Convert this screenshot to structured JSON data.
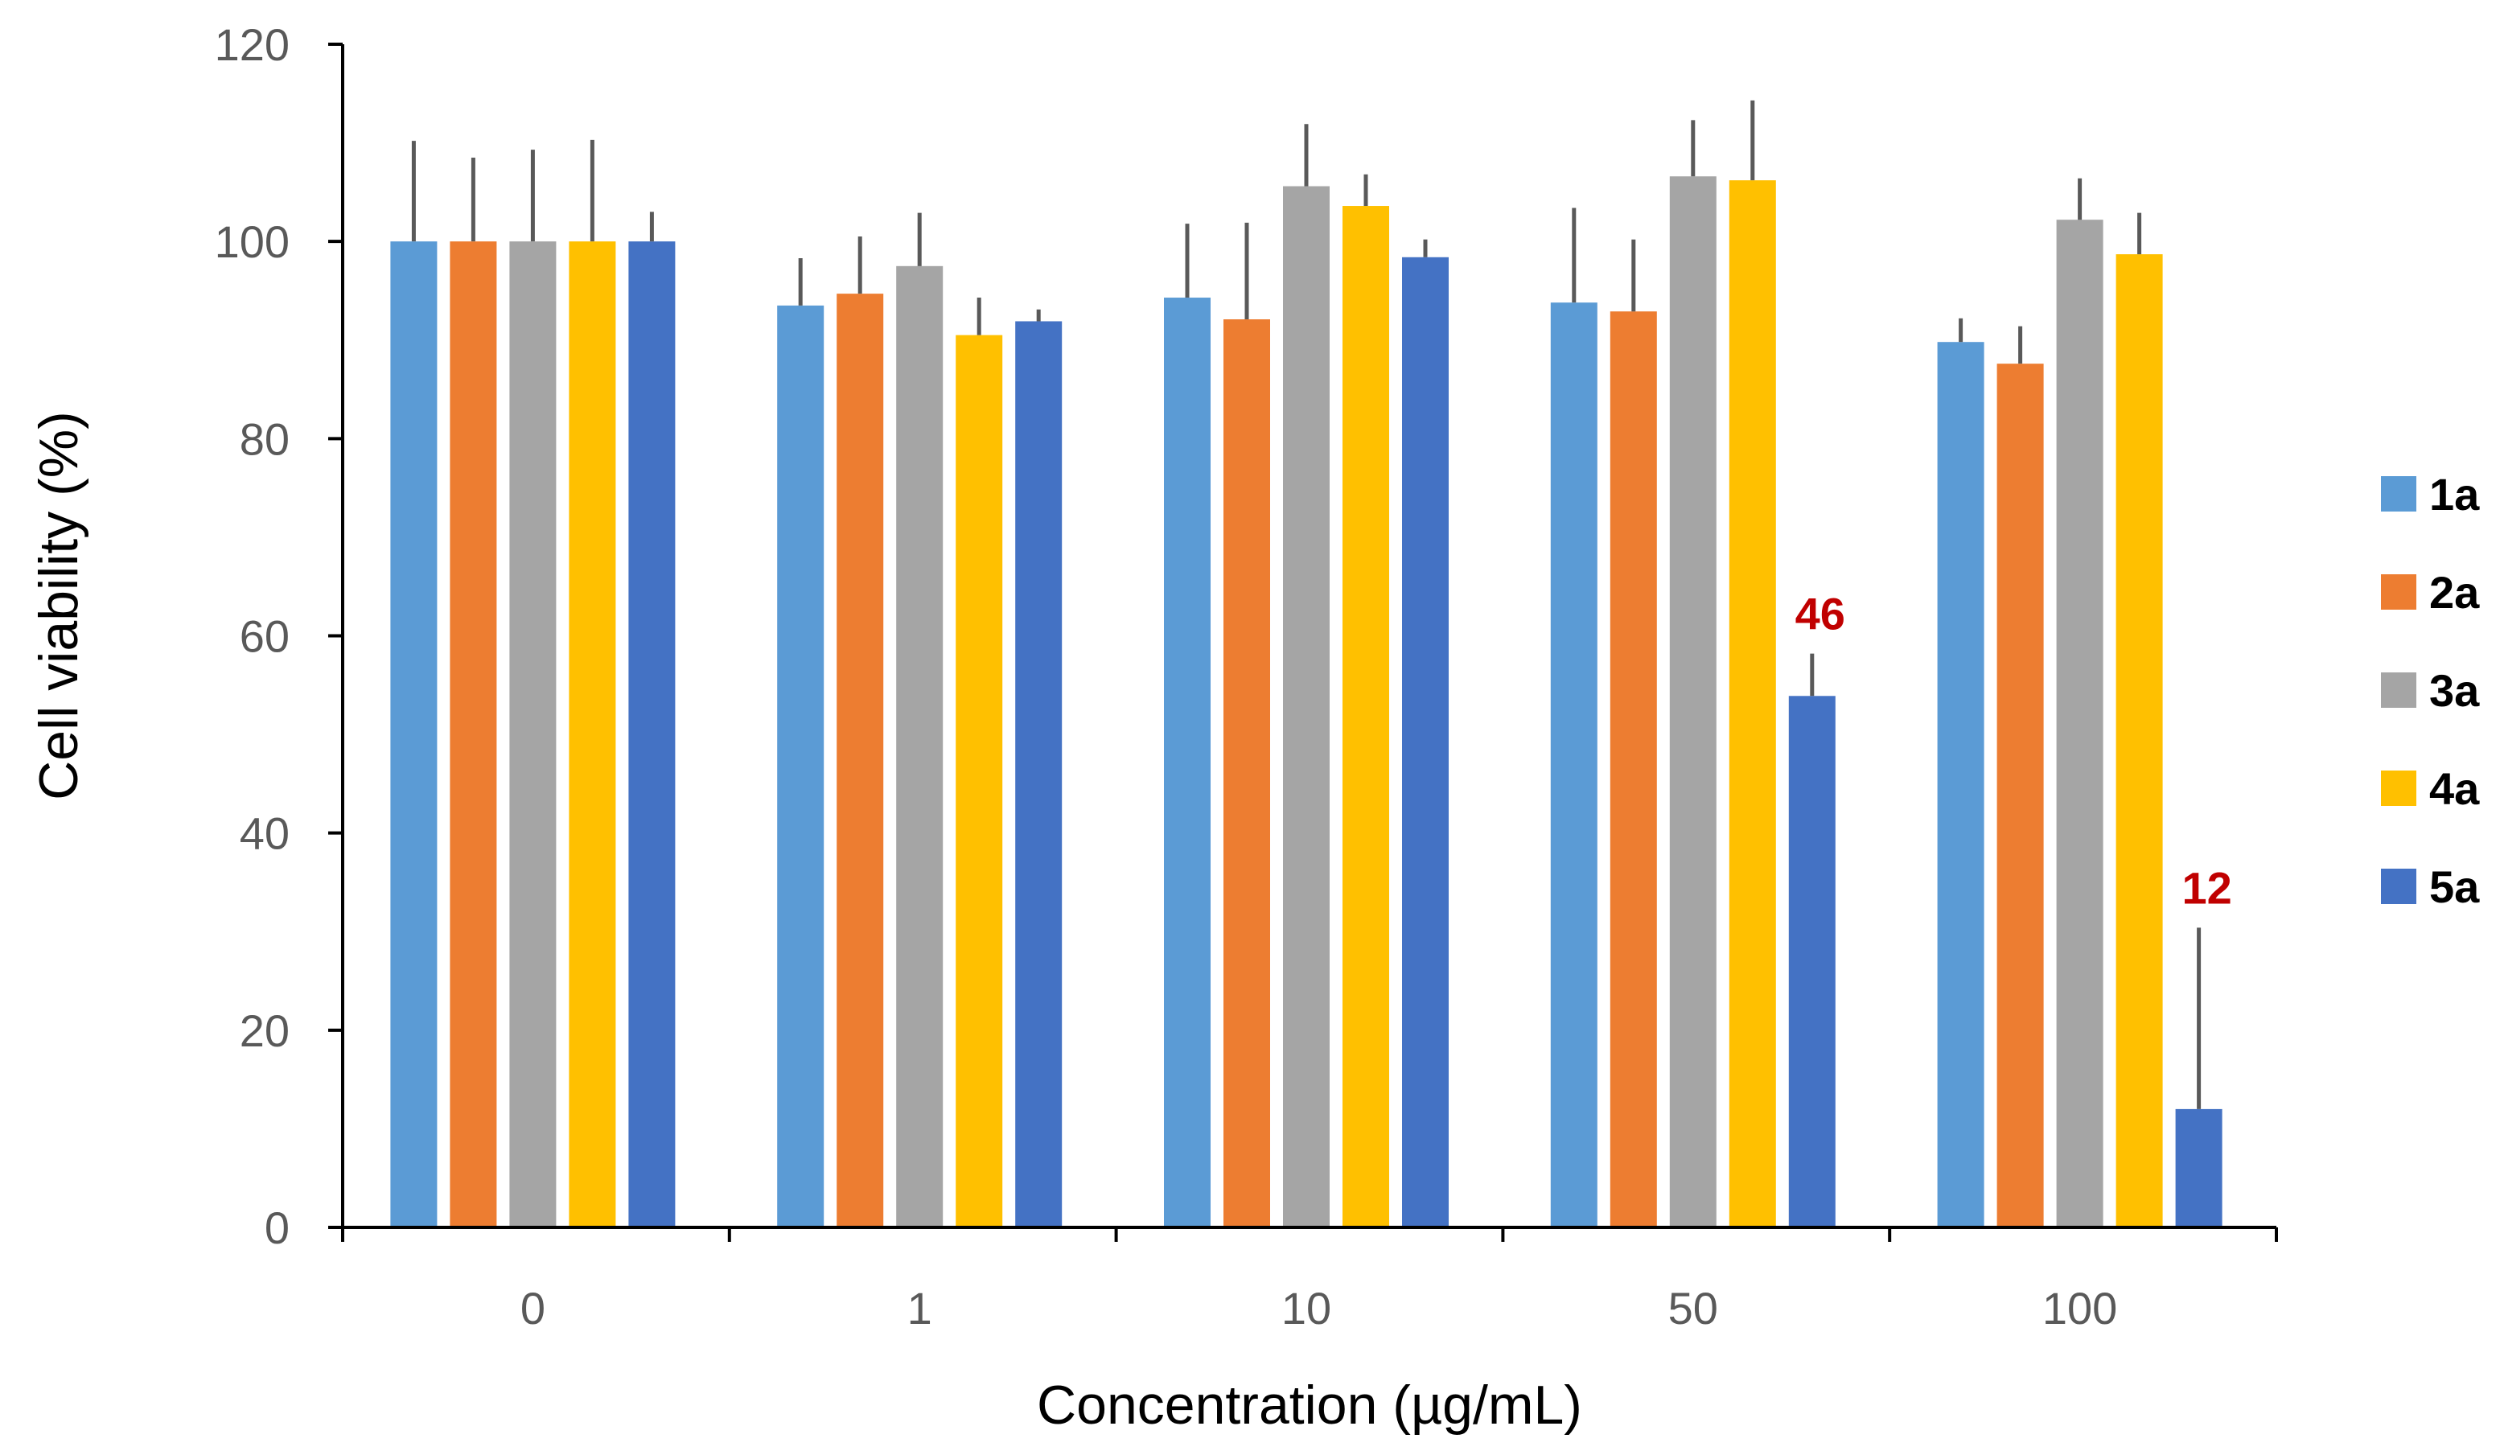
{
  "chart_data": {
    "type": "bar",
    "title": "",
    "xlabel": "Concentration (µg/mL)",
    "ylabel": "Cell viability (%)",
    "ylim": [
      0,
      120
    ],
    "yticks": [
      0,
      20,
      40,
      60,
      80,
      100,
      120
    ],
    "categories": [
      "0",
      "1",
      "10",
      "50",
      "100"
    ],
    "legend_position": "right",
    "series": [
      {
        "name": "1a",
        "color": "#5B9BD5",
        "values": [
          100,
          93.5,
          94.3,
          93.8,
          89.8
        ],
        "errors": [
          10.2,
          4.8,
          7.5,
          9.6,
          2.4
        ]
      },
      {
        "name": "2a",
        "color": "#ED7D31",
        "values": [
          100,
          94.7,
          92.1,
          92.9,
          87.6
        ],
        "errors": [
          8.5,
          5.8,
          9.8,
          7.3,
          3.8
        ]
      },
      {
        "name": "3a",
        "color": "#A5A5A5",
        "values": [
          100,
          97.5,
          105.6,
          106.6,
          102.2
        ],
        "errors": [
          9.3,
          5.4,
          6.3,
          5.7,
          4.2
        ]
      },
      {
        "name": "4a",
        "color": "#FFC000",
        "values": [
          100,
          90.5,
          103.6,
          106.2,
          98.7
        ],
        "errors": [
          10.3,
          3.8,
          3.2,
          8.1,
          4.2
        ]
      },
      {
        "name": "5a",
        "color": "#4472C4",
        "values": [
          100,
          91.9,
          98.4,
          53.9,
          12.0
        ],
        "errors": [
          3.0,
          1.2,
          1.8,
          4.3,
          18.4
        ]
      }
    ],
    "annotations": [
      {
        "text": "46",
        "category": "50",
        "series": "5a",
        "color": "#C00000"
      },
      {
        "text": "12",
        "category": "100",
        "series": "5a",
        "color": "#C00000"
      }
    ],
    "error_bar_color": "#595959"
  }
}
